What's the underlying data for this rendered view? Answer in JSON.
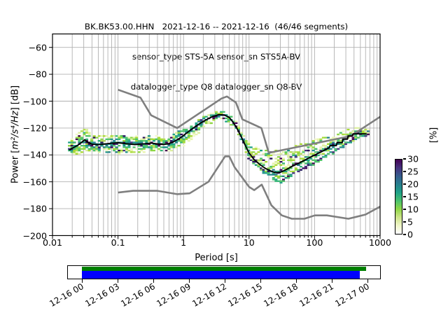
{
  "header": {
    "title_line1": "BK.BK53.00.HHN   2021-12-16 -- 2021-12-16  (46/46 segments)",
    "title_line2": "sensor_type STS-5A sensor_sn STS5A-BV",
    "title_line3": "datalogger_type Q8 datalogger_sn Q8-BV"
  },
  "axes": {
    "xlabel": "Period [s]",
    "ylabel_prefix": "Power [",
    "ylabel_math": "m²/s⁴/Hz",
    "ylabel_suffix": "] [dB]",
    "x_tick_labels": [
      "0.01",
      "0.1",
      "1",
      "10",
      "100",
      "1000"
    ],
    "x_tick_values": [
      0.01,
      0.1,
      1,
      10,
      100,
      1000
    ],
    "y_tick_labels": [
      "−60",
      "−80",
      "−100",
      "−120",
      "−140",
      "−160",
      "−180",
      "−200"
    ],
    "y_tick_values": [
      -60,
      -80,
      -100,
      -120,
      -140,
      -160,
      -180,
      -200
    ],
    "xscale": "log",
    "xlim": [
      0.01,
      1000
    ],
    "ylim": [
      -200,
      -50
    ],
    "grid": true,
    "grid_color": "#b0b0b0"
  },
  "colorbar": {
    "label": "[%]",
    "tick_labels": [
      "30",
      "25",
      "20",
      "15",
      "10",
      "5",
      "0"
    ],
    "tick_values": [
      30,
      25,
      20,
      15,
      10,
      5,
      0
    ],
    "vmin": 0,
    "vmax": 30,
    "gradient_bottom_to_top": [
      "#ffffff",
      "#f0f6c8",
      "#cde489",
      "#8ed645",
      "#4ac16d",
      "#1fa187",
      "#277f8e",
      "#365c8d",
      "#46327e",
      "#440154"
    ]
  },
  "chart_data": {
    "type": "heatmap",
    "description": "Probabilistic power spectral density (PPSD) histogram with Peterson NLNM/NHNM reference noise model curves and mean PSD line",
    "x_axis": {
      "label": "Period [s]",
      "scale": "log",
      "range": [
        0.01,
        1000
      ]
    },
    "y_axis": {
      "label": "Power [m²/s⁴/Hz] [dB]",
      "range": [
        -200,
        -50
      ],
      "tick_step": 20
    },
    "colorbar": {
      "label": "[%]",
      "range": [
        0,
        30
      ]
    },
    "histogram_period_range": [
      0.018,
      660
    ],
    "series": [
      {
        "name": "noise-model-high-NHNM",
        "color": "#7f7f7f",
        "width": 2.6,
        "points": [
          [
            0.1,
            -91.5
          ],
          [
            0.22,
            -97.4
          ],
          [
            0.32,
            -110.5
          ],
          [
            0.8,
            -120
          ],
          [
            3.8,
            -98
          ],
          [
            4.6,
            -96.5
          ],
          [
            6.3,
            -101
          ],
          [
            7.9,
            -113.5
          ],
          [
            15.4,
            -120
          ],
          [
            20,
            -138.5
          ],
          [
            354.8,
            -126
          ],
          [
            1000,
            -111.6
          ]
        ]
      },
      {
        "name": "noise-model-low-NLNM",
        "color": "#7f7f7f",
        "width": 2.6,
        "points": [
          [
            0.1,
            -168
          ],
          [
            0.17,
            -166.7
          ],
          [
            0.4,
            -166.7
          ],
          [
            0.8,
            -169.2
          ],
          [
            1.24,
            -168.6
          ],
          [
            2.4,
            -160
          ],
          [
            4.3,
            -141.1
          ],
          [
            5,
            -141.1
          ],
          [
            6,
            -149
          ],
          [
            10,
            -163.8
          ],
          [
            12,
            -166.2
          ],
          [
            15.6,
            -162.1
          ],
          [
            21.9,
            -177.5
          ],
          [
            31.6,
            -185
          ],
          [
            45,
            -187.5
          ],
          [
            70,
            -187.5
          ],
          [
            101,
            -185
          ],
          [
            154,
            -185
          ],
          [
            328,
            -187.5
          ],
          [
            600,
            -184.4
          ],
          [
            1000,
            -178.5
          ]
        ]
      },
      {
        "name": "ppsd-mean",
        "color": "#000000",
        "width": 1.9,
        "points": [
          [
            0.018,
            -136.5
          ],
          [
            0.02,
            -135
          ],
          [
            0.024,
            -133
          ],
          [
            0.028,
            -130.5
          ],
          [
            0.031,
            -128.7
          ],
          [
            0.035,
            -130.8
          ],
          [
            0.04,
            -132
          ],
          [
            0.05,
            -132.4
          ],
          [
            0.065,
            -131.8
          ],
          [
            0.08,
            -131.3
          ],
          [
            0.1,
            -131
          ],
          [
            0.13,
            -131.6
          ],
          [
            0.18,
            -132.3
          ],
          [
            0.25,
            -131.7
          ],
          [
            0.32,
            -131.2
          ],
          [
            0.4,
            -131.8
          ],
          [
            0.5,
            -132.3
          ],
          [
            0.6,
            -131.5
          ],
          [
            0.7,
            -130.3
          ],
          [
            0.85,
            -127.9
          ],
          [
            1,
            -125.5
          ],
          [
            1.3,
            -121.2
          ],
          [
            1.7,
            -117.2
          ],
          [
            2.2,
            -113.9
          ],
          [
            2.8,
            -111.4
          ],
          [
            3.5,
            -110
          ],
          [
            4.2,
            -110.3
          ],
          [
            5,
            -112.2
          ],
          [
            5.7,
            -115.6
          ],
          [
            6.5,
            -120
          ],
          [
            7.5,
            -126
          ],
          [
            8.5,
            -131.6
          ],
          [
            10,
            -138.6
          ],
          [
            12,
            -143.6
          ],
          [
            15,
            -147.6
          ],
          [
            18,
            -150.2
          ],
          [
            22,
            -152.2
          ],
          [
            26,
            -153.3
          ],
          [
            30,
            -152.9
          ],
          [
            36,
            -151.2
          ],
          [
            45,
            -148.6
          ],
          [
            55,
            -146.6
          ],
          [
            70,
            -144
          ],
          [
            90,
            -141.2
          ],
          [
            110,
            -139.1
          ],
          [
            140,
            -136.6
          ],
          [
            168,
            -134.6
          ],
          [
            172,
            -133.1
          ],
          [
            215,
            -133.1
          ],
          [
            220,
            -130.9
          ],
          [
            264,
            -130.9
          ],
          [
            270,
            -128.3
          ],
          [
            318,
            -128.3
          ],
          [
            326,
            -125.9
          ],
          [
            378,
            -125.9
          ],
          [
            388,
            -124.3
          ],
          [
            620,
            -124.3
          ]
        ]
      },
      {
        "name": "ppsd-mode",
        "color": "#2d1160",
        "width": 0,
        "points": [
          [
            10,
            -142.5
          ],
          [
            13,
            -147.5
          ],
          [
            16,
            -151.5
          ],
          [
            20,
            -155.5
          ],
          [
            24,
            -158.2
          ],
          [
            28,
            -159.8
          ],
          [
            33,
            -158.8
          ],
          [
            40,
            -156.2
          ],
          [
            50,
            -153.2
          ],
          [
            65,
            -150.2
          ],
          [
            85,
            -147.2
          ],
          [
            110,
            -144.2
          ],
          [
            140,
            -141.2
          ],
          [
            180,
            -138.2
          ],
          [
            230,
            -135.2
          ],
          [
            300,
            -131.8
          ],
          [
            400,
            -128.2
          ],
          [
            500,
            -126.4
          ],
          [
            620,
            -125.2
          ]
        ]
      },
      {
        "name": "ppsd-upper-envelope",
        "color": "none",
        "width": 0,
        "points": [
          [
            0.018,
            -130
          ],
          [
            0.022,
            -125
          ],
          [
            0.027,
            -121
          ],
          [
            0.031,
            -119.5
          ],
          [
            0.04,
            -123.5
          ],
          [
            0.05,
            -125.5
          ],
          [
            0.07,
            -125
          ],
          [
            0.1,
            -124.5
          ],
          [
            0.15,
            -125.2
          ],
          [
            0.2,
            -126
          ],
          [
            0.3,
            -125
          ],
          [
            0.45,
            -125.8
          ],
          [
            0.6,
            -125.2
          ],
          [
            0.7,
            -124.4
          ],
          [
            1,
            -120.4
          ],
          [
            1.5,
            -115
          ],
          [
            2,
            -111.2
          ],
          [
            3,
            -107.6
          ],
          [
            4,
            -106.8
          ],
          [
            5,
            -108.6
          ],
          [
            6,
            -113
          ],
          [
            7,
            -118
          ],
          [
            8,
            -123.8
          ],
          [
            10,
            -130.4
          ],
          [
            12,
            -132.8
          ],
          [
            15,
            -134.6
          ],
          [
            20,
            -136.4
          ],
          [
            30,
            -135.6
          ],
          [
            50,
            -132.6
          ],
          [
            80,
            -129.6
          ],
          [
            120,
            -127
          ],
          [
            200,
            -123.6
          ],
          [
            300,
            -121
          ],
          [
            450,
            -119
          ],
          [
            620,
            -118.8
          ]
        ]
      },
      {
        "name": "ppsd-lower-envelope",
        "color": "none",
        "width": 0,
        "points": [
          [
            0.018,
            -141.5
          ],
          [
            0.022,
            -140.2
          ],
          [
            0.03,
            -138.6
          ],
          [
            0.05,
            -138.6
          ],
          [
            0.1,
            -139.6
          ],
          [
            0.2,
            -139.2
          ],
          [
            0.3,
            -138.2
          ],
          [
            0.5,
            -138.6
          ],
          [
            0.7,
            -137.2
          ],
          [
            1,
            -133.6
          ],
          [
            1.5,
            -127.2
          ],
          [
            2,
            -120.6
          ],
          [
            3,
            -115.2
          ],
          [
            4,
            -114.2
          ],
          [
            5,
            -116.6
          ],
          [
            6,
            -121.2
          ],
          [
            7,
            -126.6
          ],
          [
            8,
            -133.2
          ],
          [
            10,
            -143.6
          ],
          [
            13,
            -149.2
          ],
          [
            16,
            -153.2
          ],
          [
            20,
            -157.2
          ],
          [
            25,
            -160.6
          ],
          [
            30,
            -160.6
          ],
          [
            40,
            -158.2
          ],
          [
            55,
            -154.6
          ],
          [
            75,
            -151.2
          ],
          [
            100,
            -147.6
          ],
          [
            140,
            -143.6
          ],
          [
            200,
            -139.6
          ],
          [
            280,
            -135.6
          ],
          [
            400,
            -131.2
          ],
          [
            500,
            -129.2
          ],
          [
            620,
            -127.6
          ]
        ]
      }
    ],
    "histogram_palette": {
      "dark": [
        "#440154",
        "#46327e",
        "#2d1160"
      ],
      "teal": [
        "#277f8e",
        "#21918c",
        "#1fa187"
      ],
      "green": [
        "#35b779",
        "#4ac16d",
        "#52c569"
      ],
      "light": [
        "#8ed645",
        "#a8db34",
        "#b5de53"
      ],
      "pale": [
        "#e8f4ae",
        "#f3f9cd",
        "#dcefa0"
      ]
    }
  },
  "timeline": {
    "date_tick_labels": [
      "12-16 00",
      "12-16 03",
      "12-16 06",
      "12-16 09",
      "12-16 12",
      "12-16 15",
      "12-16 18",
      "12-16 21",
      "12-17 00"
    ],
    "span_hours": 24,
    "coverage_bars": [
      {
        "name": "segment-coverage",
        "color": "#008000",
        "start_hours": 0,
        "end_hours": 23.92
      },
      {
        "name": "data-coverage",
        "color": "#0000ff",
        "start_hours": 0,
        "end_hours": 23.4
      }
    ]
  }
}
